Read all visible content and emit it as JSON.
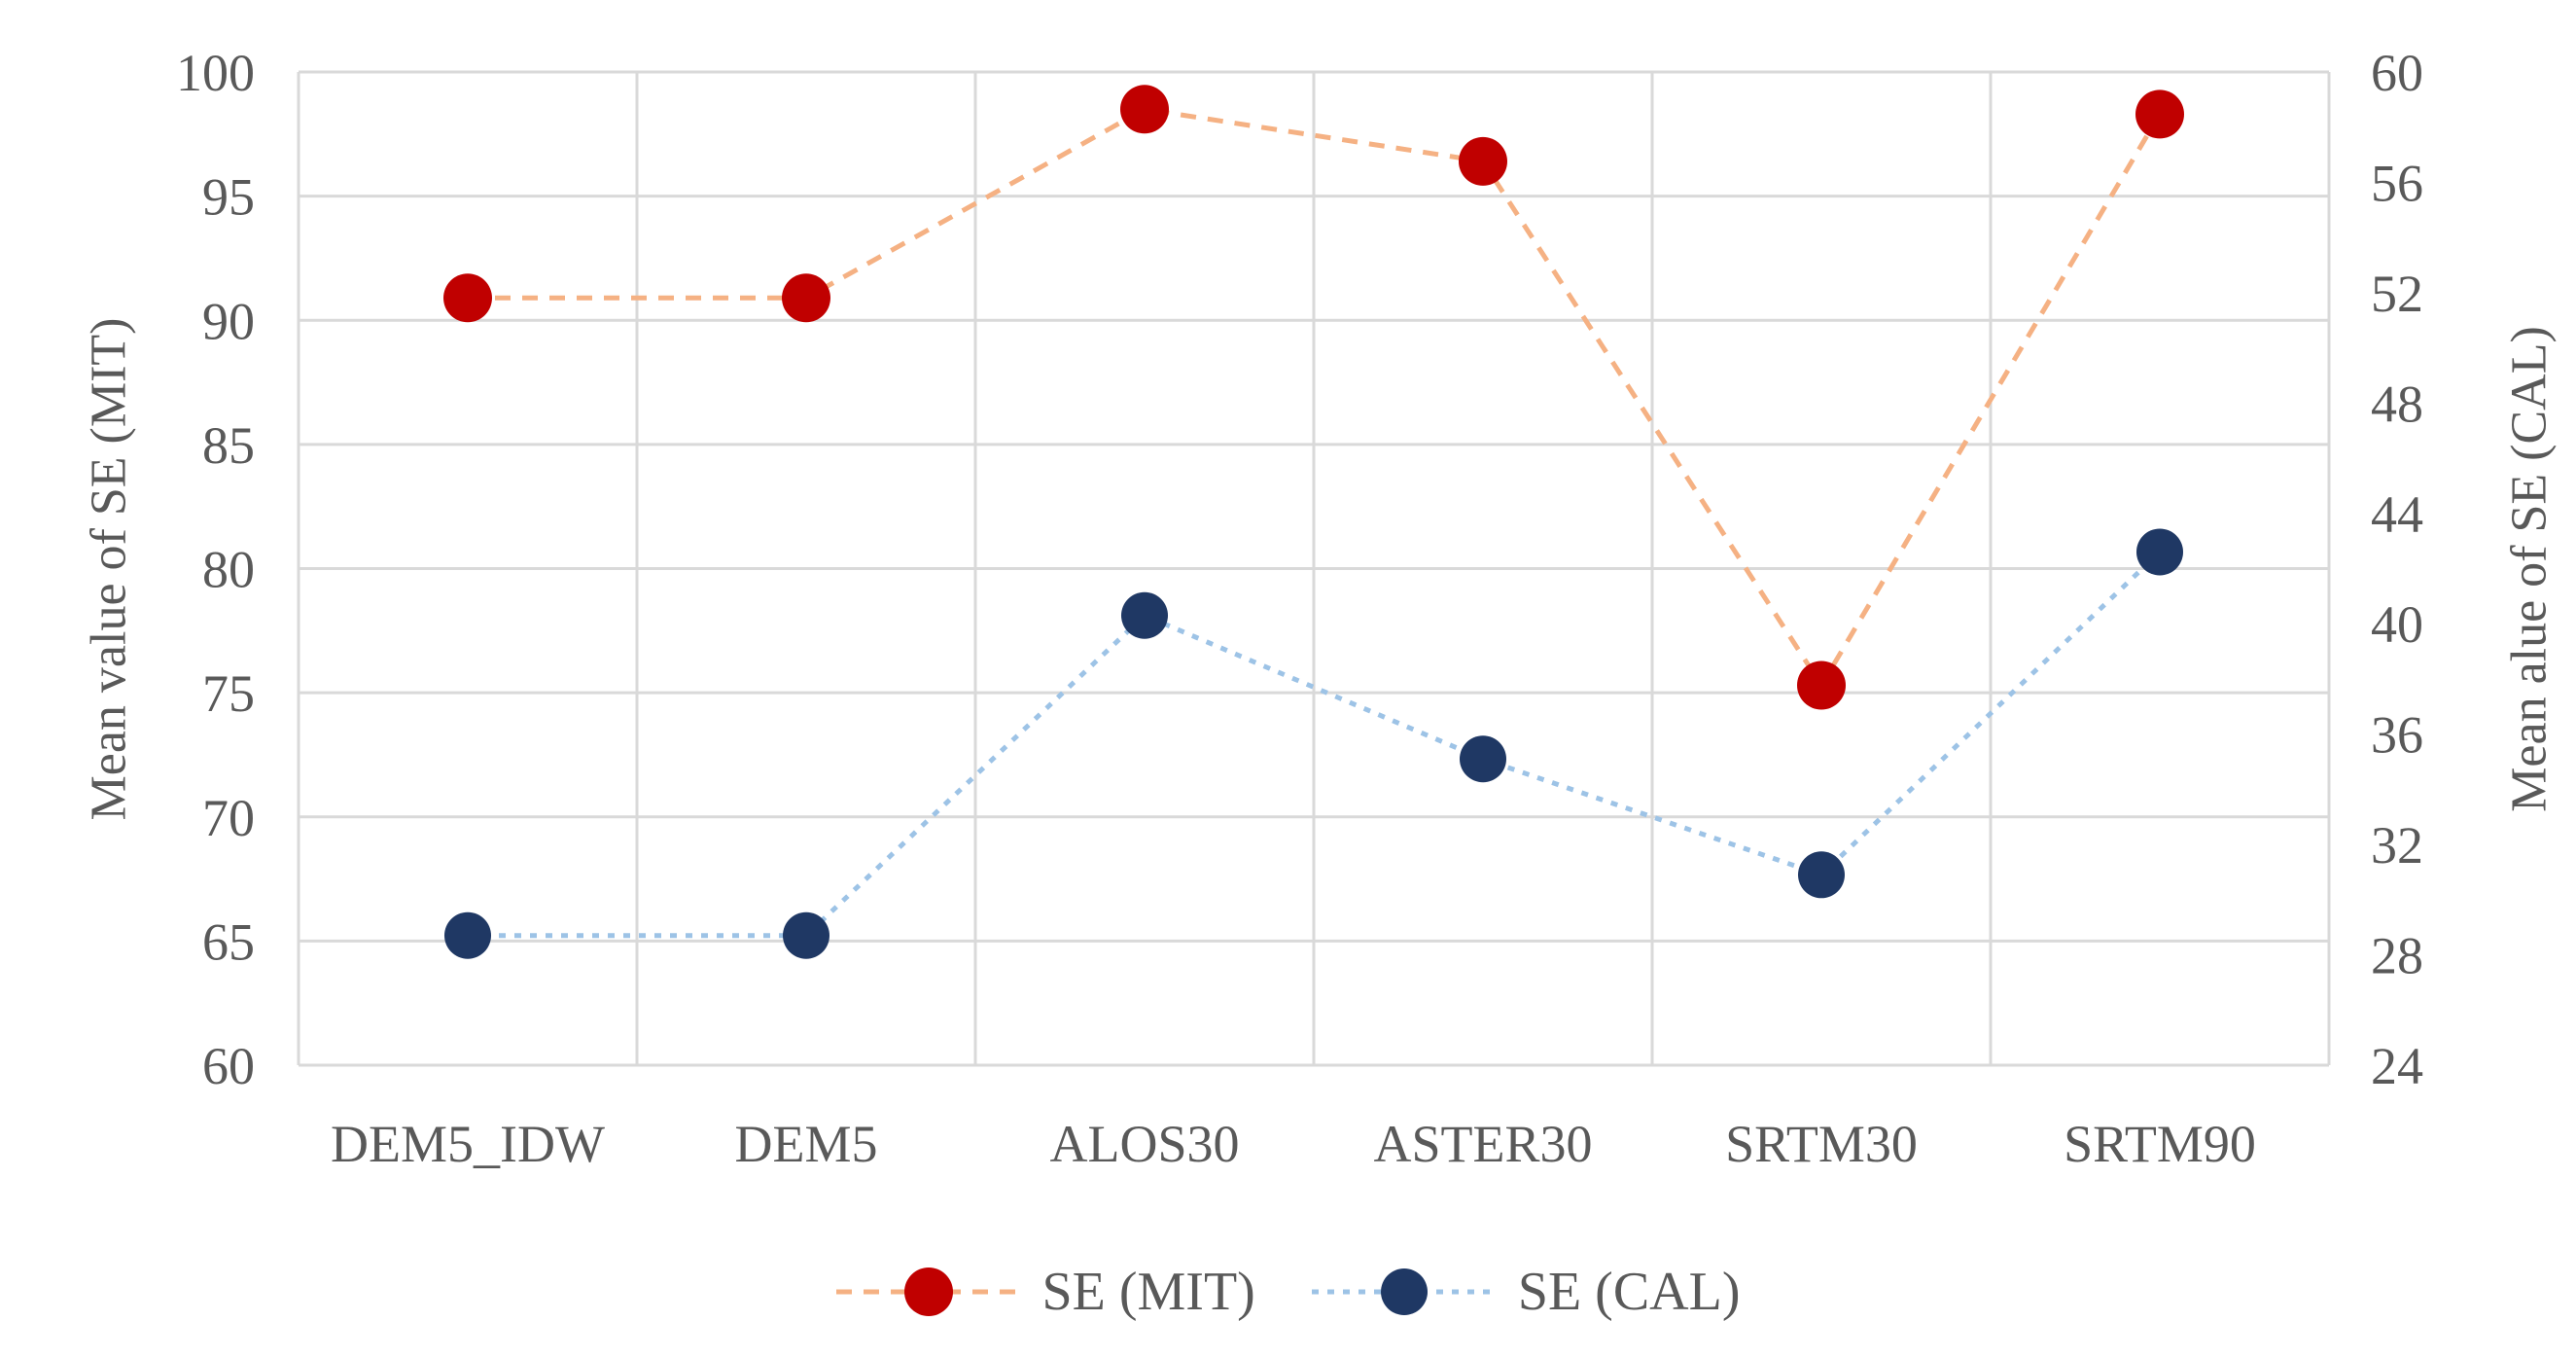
{
  "chart_data": {
    "type": "line",
    "title": "",
    "categories": [
      "DEM5_IDW",
      "DEM5",
      "ALOS30",
      "ASTER30",
      "SRTM30",
      "SRTM90"
    ],
    "series": [
      {
        "name": "SE (MIT)",
        "axis": "left",
        "values": [
          90.9,
          90.9,
          98.5,
          96.4,
          75.3,
          98.3
        ],
        "marker_color": "#C00000",
        "line_color": "#F5B183",
        "line_style": "dashed"
      },
      {
        "name": "SE (CAL)",
        "axis": "right",
        "values": [
          28.7,
          28.7,
          40.3,
          35.1,
          30.9,
          42.6
        ],
        "marker_color": "#1F3864",
        "line_color": "#9DC3E6",
        "line_style": "dotted"
      }
    ],
    "left_axis": {
      "title": "Mean value of SE (MIT)",
      "min": 60,
      "max": 100,
      "ticks": [
        100,
        95,
        90,
        85,
        80,
        75,
        70,
        65,
        60
      ]
    },
    "right_axis": {
      "title": "Mean alue of SE (CAL)",
      "min": 24,
      "max": 60,
      "ticks": [
        60,
        56,
        52,
        48,
        44,
        40,
        36,
        32,
        28,
        24
      ]
    },
    "grid": true,
    "legend_position": "bottom",
    "colors": {
      "gridline": "#D9D9D9",
      "text": "#595959",
      "background": "#FFFFFF"
    }
  }
}
